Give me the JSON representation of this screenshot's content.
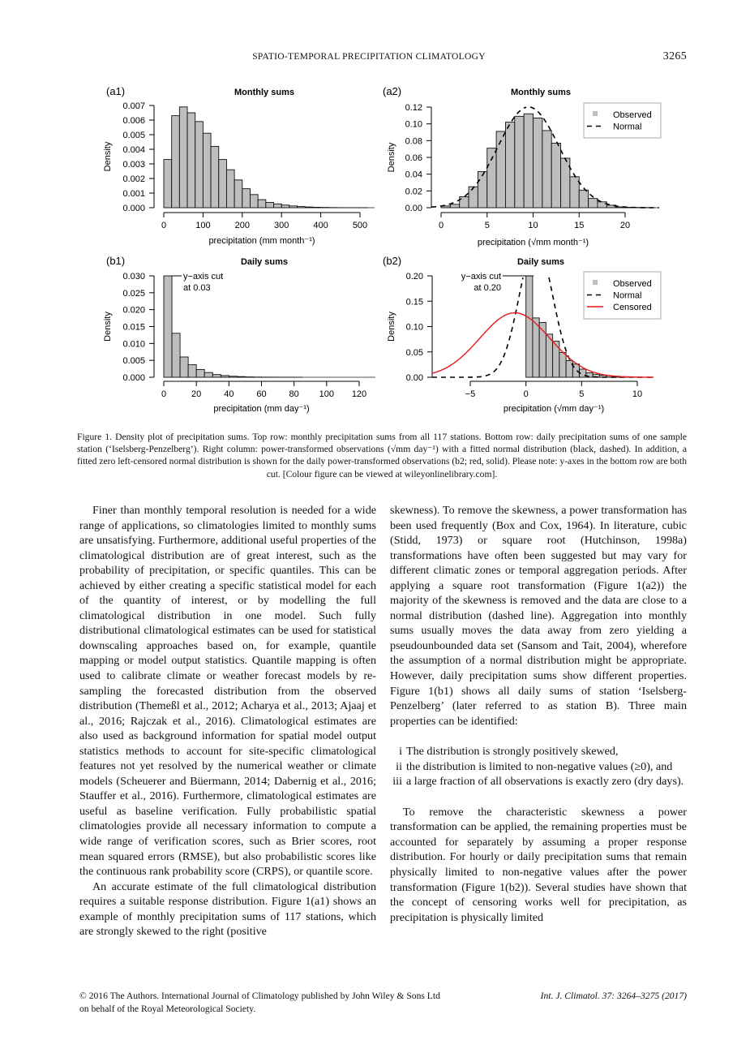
{
  "header": {
    "running_title": "SPATIO-TEMPORAL PRECIPITATION CLIMATOLOGY",
    "page_number": "3265"
  },
  "chart_data": [
    {
      "panel": "(a1)",
      "type": "bar",
      "title": "Monthly sums",
      "xlabel": "precipitation (mm month⁻¹)",
      "ylabel": "Density",
      "xlim": [
        0,
        500
      ],
      "ylim": [
        0,
        0.007
      ],
      "xticks": [
        0,
        100,
        200,
        300,
        400,
        500
      ],
      "yticks": [
        "0.000",
        "0.001",
        "0.002",
        "0.003",
        "0.004",
        "0.005",
        "0.006",
        "0.007"
      ],
      "bin_width": 20,
      "bin_start": 0,
      "values": [
        0.0033,
        0.0063,
        0.0069,
        0.0065,
        0.0059,
        0.0051,
        0.0042,
        0.0033,
        0.0026,
        0.0019,
        0.0013,
        0.0009,
        0.00055,
        0.00036,
        0.00026,
        0.00018,
        0.00012,
        8e-05,
        5e-05,
        3e-05,
        2e-05,
        1e-05,
        5e-06,
        3e-06,
        2e-06,
        1e-06
      ]
    },
    {
      "panel": "(a2)",
      "type": "bar",
      "title": "Monthly sums",
      "xlabel": "precipitation (√mm month⁻¹)",
      "ylabel": "Density",
      "xlim": [
        0,
        20
      ],
      "ylim": [
        0,
        0.12
      ],
      "xticks": [
        0,
        5,
        10,
        15,
        20
      ],
      "yticks": [
        "0.00",
        "0.02",
        "0.04",
        "0.06",
        "0.08",
        "0.10",
        "0.12"
      ],
      "bin_width": 1,
      "bin_start": 0,
      "values": [
        0.002,
        0.004,
        0.013,
        0.025,
        0.043,
        0.071,
        0.091,
        0.102,
        0.109,
        0.112,
        0.107,
        0.092,
        0.077,
        0.059,
        0.037,
        0.021,
        0.011,
        0.007,
        0.003,
        0.001,
        0.0005,
        0.0003,
        0.0002
      ],
      "curves": [
        {
          "name": "Normal",
          "dist": "normal",
          "mean": 9.5,
          "sd": 3.32,
          "color": "#000000",
          "dash": true
        }
      ],
      "legend": {
        "position": "top-right",
        "entries": [
          {
            "label": "Observed",
            "kind": "square",
            "color": "#bebebe"
          },
          {
            "label": "Normal",
            "kind": "dashed",
            "color": "#000000"
          }
        ]
      }
    },
    {
      "panel": "(b1)",
      "type": "bar",
      "title": "Daily sums",
      "xlabel": "precipitation (mm day⁻¹)",
      "ylabel": "Density",
      "xlim": [
        0,
        120
      ],
      "ylim": [
        0,
        0.03
      ],
      "xticks": [
        0,
        20,
        40,
        60,
        80,
        100,
        120
      ],
      "yticks": [
        "0.000",
        "0.005",
        "0.010",
        "0.015",
        "0.020",
        "0.025",
        "0.030"
      ],
      "bin_width": 5,
      "bin_start": 0,
      "values": [
        0.12,
        0.013,
        0.006,
        0.0037,
        0.0023,
        0.0014,
        0.0008,
        0.0005,
        0.0003,
        0.0002,
        0.0001,
        6e-05,
        4e-05,
        3e-05,
        2e-05,
        2e-05,
        1e-05
      ],
      "annotation": {
        "line1": "y−axis cut",
        "line2": "at 0.03"
      }
    },
    {
      "panel": "(b2)",
      "type": "bar",
      "title": "Daily sums",
      "xlabel": "precipitation (√mm day⁻¹)",
      "ylabel": "Density",
      "xlim": [
        -5,
        10
      ],
      "ylim": [
        0,
        0.2
      ],
      "xticks": [
        "−5",
        "0",
        "5",
        "10"
      ],
      "xtick_values": [
        -5,
        0,
        5,
        10
      ],
      "yticks": [
        "0.00",
        "0.05",
        "0.10",
        "0.15",
        "0.20"
      ],
      "bin_width": 0.6,
      "bin_start": 0,
      "values": [
        0.9,
        0.117,
        0.108,
        0.085,
        0.071,
        0.049,
        0.033,
        0.026,
        0.016,
        0.009,
        0.006,
        0.004,
        0.003,
        0.002,
        0.001,
        0.001,
        0.0005
      ],
      "curves": [
        {
          "name": "Normal",
          "dist": "normal",
          "mean": 0.9,
          "sd": 1.5,
          "color": "#000000",
          "dash": true
        },
        {
          "name": "Censored",
          "dist": "normal",
          "mean": -1.0,
          "sd": 3.14,
          "color": "#e41a1c",
          "dash": false
        }
      ],
      "annotation": {
        "line1": "y−axis cut",
        "line2": "at 0.20"
      },
      "legend": {
        "position": "top-right",
        "entries": [
          {
            "label": "Observed",
            "kind": "square",
            "color": "#bebebe"
          },
          {
            "label": "Normal",
            "kind": "dashed",
            "color": "#000000"
          },
          {
            "label": "Censored",
            "kind": "solid",
            "color": "#e41a1c"
          }
        ]
      }
    }
  ],
  "caption": "Figure 1. Density plot of precipitation sums. Top row: monthly precipitation sums from all 117 stations. Bottom row: daily precipitation sums of one sample station (‘Iselsberg-Penzelberg’). Right column: power-transformed observations (√mm day⁻¹) with a fitted normal distribution (black, dashed). In addition, a fitted zero left-censored normal distribution is shown for the daily power-transformed observations (b2; red, solid). Please note: y-axes in the bottom row are both cut. [Colour figure can be viewed at wileyonlinelibrary.com].",
  "left_column": {
    "p1": "Finer than monthly temporal resolution is needed for a wide range of applications, so climatologies limited to monthly sums are unsatisfying. Furthermore, additional useful properties of the climatological distribution are of great interest, such as the probability of precipitation, or specific quantiles. This can be achieved by either creating a specific statistical model for each of the quantity of interest, or by modelling the full climatological distribution in one model. Such fully distributional climatological estimates can be used for statistical downscaling approaches based on, for example, quantile mapping or model output statistics. Quantile mapping is often used to calibrate climate or weather forecast models by re-sampling the forecasted distribution from the observed distribution (Themeßl et al., 2012; Acharya et al., 2013; Ajaaj et al., 2016; Rajczak et al., 2016). Climatological estimates are also used as background information for spatial model output statistics methods to account for site-specific climatological features not yet resolved by the numerical weather or climate models (Scheuerer and Büermann, 2014; Dabernig et al., 2016; Stauffer et al., 2016). Furthermore, climatological estimates are useful as baseline verification. Fully probabilistic spatial climatologies provide all necessary information to compute a wide range of verification scores, such as Brier scores, root mean squared errors (RMSE), but also probabilistic scores like the continuous rank probability score (CRPS), or quantile score.",
    "p2": "An accurate estimate of the full climatological distribution requires a suitable response distribution. Figure 1(a1) shows an example of monthly precipitation sums of 117 stations, which are strongly skewed to the right (positive"
  },
  "right_column": {
    "p1": "skewness). To remove the skewness, a power transformation has been used frequently (Box and Cox, 1964). In literature, cubic (Stidd, 1973) or square root (Hutchinson, 1998a) transformations have often been suggested but may vary for different climatic zones or temporal aggregation periods. After applying a square root transformation (Figure 1(a2)) the majority of the skewness is removed and the data are close to a normal distribution (dashed line). Aggregation into monthly sums usually moves the data away from zero yielding a pseudounbounded data set (Sansom and Tait, 2004), wherefore the assumption of a normal distribution might be appropriate. However, daily precipitation sums show different properties. Figure 1(b1) shows all daily sums of station ‘Iselsberg-Penzelberg’ (later referred to as station B). Three main properties can be identified:",
    "list": [
      {
        "num": "i",
        "text": "The distribution is strongly positively skewed,"
      },
      {
        "num": "ii",
        "text": "the distribution is limited to non-negative values (≥0), and"
      },
      {
        "num": "iii",
        "text": "a large fraction of all observations is exactly zero (dry days)."
      }
    ],
    "p2": "To remove the characteristic skewness a power transformation can be applied, the remaining properties must be accounted for separately by assuming a proper response distribution. For hourly or daily precipitation sums that remain physically limited to non-negative values after the power transformation (Figure 1(b2)). Several studies have shown that the concept of censoring works well for precipitation, as precipitation is physically limited"
  },
  "footer": {
    "left_line1": "© 2016 The Authors. International Journal of Climatology published by John Wiley & Sons Ltd",
    "left_line2": "on behalf of the Royal Meteorological Society.",
    "right": "Int. J. Climatol. 37: 3264–3275 (2017)"
  }
}
